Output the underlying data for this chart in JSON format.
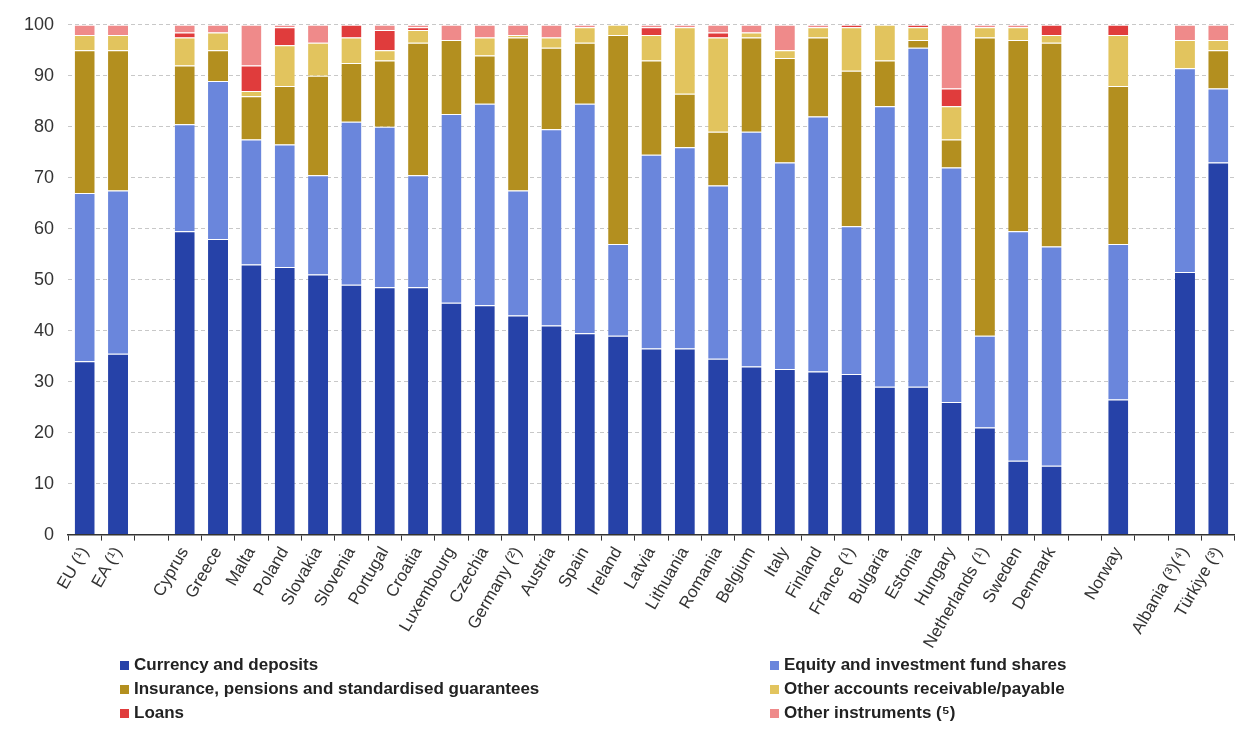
{
  "chart_data": {
    "type": "bar",
    "stacked": true,
    "categories": [
      "EU (¹)",
      "EA (¹)",
      null,
      "Cyprus",
      "Greece",
      "Malta",
      "Poland",
      "Slovakia",
      "Slovenia",
      "Portugal",
      "Croatia",
      "Luxembourg",
      "Czechia",
      "Germany (²)",
      "Austria",
      "Spain",
      "Ireland",
      "Latvia",
      "Lithuania",
      "Romania",
      "Belgium",
      "Italy",
      "Finland",
      "France (¹)",
      "Bulgaria",
      "Estonia",
      "Hungary",
      "Netherlands (¹)",
      "Sweden",
      "Denmark",
      null,
      "Norway",
      null,
      "Albania (³)(⁴)",
      "Türkiye (³)"
    ],
    "series": [
      {
        "name": "Currency and deposits",
        "color": "#2642a8",
        "values": [
          34,
          35.5,
          null,
          59.5,
          58,
          53,
          52.5,
          51,
          49,
          48.5,
          48.5,
          45.5,
          45,
          43,
          41,
          39.5,
          39,
          36.5,
          36.5,
          34.5,
          33,
          32.5,
          32,
          31.5,
          29,
          29,
          26,
          21,
          14.5,
          13.5,
          null,
          26.5,
          null,
          51.5,
          73
        ]
      },
      {
        "name": "Equity and investment fund shares",
        "color": "#6a86dc",
        "values": [
          33,
          32,
          null,
          21,
          31,
          24.5,
          24,
          19.5,
          32,
          31.5,
          22,
          37,
          39.5,
          24.5,
          38.5,
          45,
          18,
          38,
          39.5,
          34,
          46,
          40.5,
          50,
          29,
          55,
          66.5,
          46,
          18,
          45,
          43,
          null,
          30.5,
          null,
          40,
          14.5
        ]
      },
      {
        "name": "Insurance, pensions and standardised guarantees",
        "color": "#b38f1f",
        "values": [
          28,
          27.5,
          null,
          11.5,
          6,
          8.5,
          11.5,
          19.5,
          11.5,
          13,
          26,
          14.5,
          9.5,
          30,
          16,
          12,
          41,
          18.5,
          10.5,
          10.5,
          18.5,
          20.5,
          15.5,
          30.5,
          9,
          1.5,
          5.5,
          58.5,
          37.5,
          40,
          null,
          31,
          null,
          0,
          7.5
        ]
      },
      {
        "name": "Other accounts receivable/payable",
        "color": "#e2c45e",
        "values": [
          3,
          3,
          null,
          5.5,
          3.5,
          1,
          8,
          6.5,
          5,
          2,
          2.5,
          0,
          3.5,
          0.5,
          2,
          3,
          2,
          5,
          13,
          18.5,
          1,
          1.5,
          2,
          8.5,
          7,
          2.5,
          6.5,
          2,
          2.5,
          1.5,
          null,
          10,
          null,
          5.5,
          2
        ]
      },
      {
        "name": "Loans",
        "color": "#e03c3c",
        "values": [
          0,
          0,
          null,
          1,
          0,
          5,
          3.5,
          0,
          2.5,
          4,
          0.5,
          0,
          0,
          0,
          0,
          0,
          0,
          1.5,
          0,
          1,
          0,
          0,
          0,
          0.5,
          0,
          0.5,
          3.5,
          0,
          0,
          2,
          null,
          2,
          null,
          0,
          0
        ]
      },
      {
        "name": "Other instruments (⁵)",
        "color": "#ef8a8a",
        "values": [
          2,
          2,
          null,
          1.5,
          1.5,
          8,
          0.5,
          3.5,
          0,
          1,
          0.5,
          3,
          2.5,
          2,
          2.5,
          0.5,
          0,
          0.5,
          0.5,
          1.5,
          1.5,
          5,
          0.5,
          0,
          0,
          0,
          12.5,
          0.5,
          0.5,
          0,
          null,
          0,
          null,
          3,
          3
        ]
      }
    ],
    "ylim": [
      0,
      100
    ],
    "yticks": [
      0,
      10,
      20,
      30,
      40,
      50,
      60,
      70,
      80,
      90,
      100
    ],
    "grid": "y",
    "legend": "bottom"
  }
}
